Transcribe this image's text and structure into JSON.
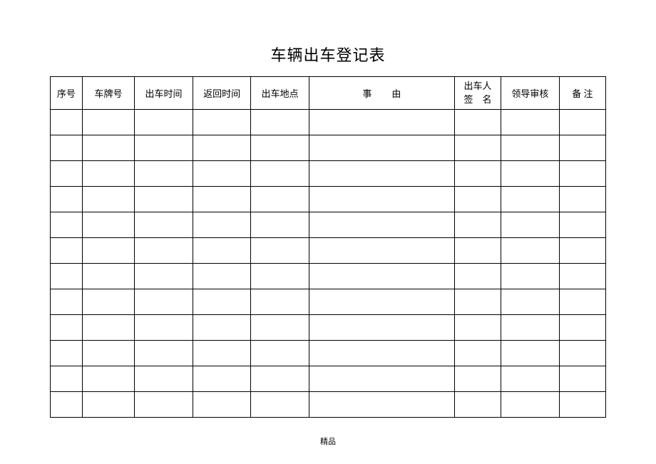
{
  "document": {
    "title": "车辆出车登记表",
    "footer": "精品",
    "background_color": "#ffffff",
    "border_color": "#000000",
    "title_fontsize": 22,
    "header_fontsize": 13,
    "cell_fontsize": 13,
    "footer_fontsize": 11
  },
  "table": {
    "type": "table",
    "columns": [
      {
        "label": "序号",
        "width_pct": 5.5
      },
      {
        "label": "车牌号",
        "width_pct": 9
      },
      {
        "label": "出车时间",
        "width_pct": 10
      },
      {
        "label": "返回时间",
        "width_pct": 10
      },
      {
        "label": "出车地点",
        "width_pct": 10
      },
      {
        "label": "事由",
        "width_pct": 25,
        "spread": true
      },
      {
        "label_line1": "出车人",
        "label_line2": "签　名",
        "width_pct": 8,
        "multiline": true
      },
      {
        "label": "领导审核",
        "width_pct": 10
      },
      {
        "label": "备 注",
        "width_pct": 8
      }
    ],
    "header_row_height": 46,
    "data_row_height": 36,
    "data_row_count": 12,
    "rows": [
      [
        "",
        "",
        "",
        "",
        "",
        "",
        "",
        "",
        ""
      ],
      [
        "",
        "",
        "",
        "",
        "",
        "",
        "",
        "",
        ""
      ],
      [
        "",
        "",
        "",
        "",
        "",
        "",
        "",
        "",
        ""
      ],
      [
        "",
        "",
        "",
        "",
        "",
        "",
        "",
        "",
        ""
      ],
      [
        "",
        "",
        "",
        "",
        "",
        "",
        "",
        "",
        ""
      ],
      [
        "",
        "",
        "",
        "",
        "",
        "",
        "",
        "",
        ""
      ],
      [
        "",
        "",
        "",
        "",
        "",
        "",
        "",
        "",
        ""
      ],
      [
        "",
        "",
        "",
        "",
        "",
        "",
        "",
        "",
        ""
      ],
      [
        "",
        "",
        "",
        "",
        "",
        "",
        "",
        "",
        ""
      ],
      [
        "",
        "",
        "",
        "",
        "",
        "",
        "",
        "",
        ""
      ],
      [
        "",
        "",
        "",
        "",
        "",
        "",
        "",
        "",
        ""
      ],
      [
        "",
        "",
        "",
        "",
        "",
        "",
        "",
        "",
        ""
      ]
    ]
  }
}
